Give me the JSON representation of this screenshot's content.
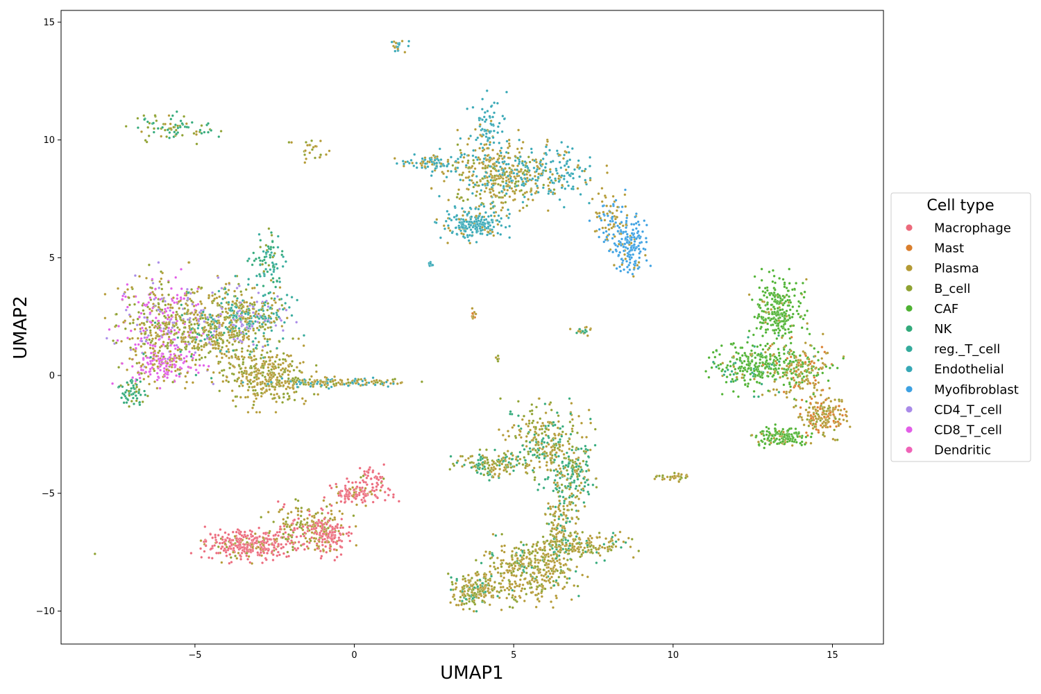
{
  "chart_data": {
    "type": "scatter",
    "xlabel": "UMAP1",
    "ylabel": "UMAP2",
    "xlim": [
      -9.2,
      16.6
    ],
    "ylim": [
      -11.4,
      15.5
    ],
    "xticks": [
      -5,
      0,
      5,
      10,
      15
    ],
    "yticks": [
      -10,
      -5,
      0,
      5,
      10,
      15
    ],
    "xtick_labels": [
      "−5",
      "0",
      "5",
      "10",
      "15"
    ],
    "ytick_labels": [
      "−10",
      "−5",
      "0",
      "5",
      "10",
      "15"
    ],
    "grid": false,
    "legend": {
      "title": "Cell type",
      "placement": "right",
      "entries": [
        {
          "name": "Macrophage",
          "color": "#ec6a7c"
        },
        {
          "name": "Mast",
          "color": "#da7e2d"
        },
        {
          "name": "Plasma",
          "color": "#b49a35"
        },
        {
          "name": "B_cell",
          "color": "#8fa232"
        },
        {
          "name": "CAF",
          "color": "#4eb232"
        },
        {
          "name": "NK",
          "color": "#33aa7b"
        },
        {
          "name": "reg._T_cell",
          "color": "#35ab9c"
        },
        {
          "name": "Endothelial",
          "color": "#37a8b6"
        },
        {
          "name": "Myofibroblast",
          "color": "#3da1e2"
        },
        {
          "name": "CD4_T_cell",
          "color": "#a98ae8"
        },
        {
          "name": "CD8_T_cell",
          "color": "#e25ee7"
        },
        {
          "name": "Dendritic",
          "color": "#ef63b7"
        }
      ]
    },
    "clusters": [
      {
        "cx": -6.0,
        "cy": 2.2,
        "sx": 0.7,
        "sy": 1.0,
        "n": 450,
        "mix": {
          "CD8_T_cell": 0.35,
          "CD4_T_cell": 0.15,
          "Plasma": 0.25,
          "B_cell": 0.25
        }
      },
      {
        "cx": -6.0,
        "cy": 0.5,
        "sx": 0.5,
        "sy": 0.4,
        "n": 150,
        "mix": {
          "CD8_T_cell": 0.7,
          "Plasma": 0.3
        }
      },
      {
        "cx": -4.6,
        "cy": 1.8,
        "sx": 0.8,
        "sy": 0.8,
        "n": 350,
        "mix": {
          "Plasma": 0.5,
          "B_cell": 0.4,
          "NK": 0.1
        }
      },
      {
        "cx": -3.4,
        "cy": 2.4,
        "sx": 0.7,
        "sy": 0.7,
        "n": 380,
        "mix": {
          "reg._T_cell": 0.3,
          "CD4_T_cell": 0.2,
          "Plasma": 0.3,
          "B_cell": 0.2
        }
      },
      {
        "cx": -2.7,
        "cy": 0.0,
        "sx": 0.6,
        "sy": 0.6,
        "n": 300,
        "mix": {
          "Plasma": 0.6,
          "B_cell": 0.4
        }
      },
      {
        "cx": -1.0,
        "cy": -0.3,
        "sx": 1.2,
        "sy": 0.1,
        "n": 180,
        "mix": {
          "Plasma": 0.5,
          "B_cell": 0.3,
          "Endothelial": 0.2
        }
      },
      {
        "cx": -2.7,
        "cy": 4.8,
        "sx": 0.25,
        "sy": 0.6,
        "n": 80,
        "mix": {
          "NK": 0.5,
          "reg._T_cell": 0.3,
          "B_cell": 0.2
        }
      },
      {
        "cx": -7.0,
        "cy": -0.7,
        "sx": 0.2,
        "sy": 0.3,
        "n": 60,
        "mix": {
          "NK": 0.8,
          "B_cell": 0.2
        }
      },
      {
        "cx": -5.6,
        "cy": 10.5,
        "sx": 0.6,
        "sy": 0.3,
        "n": 80,
        "mix": {
          "NK": 0.4,
          "B_cell": 0.4,
          "Plasma": 0.2
        }
      },
      {
        "cx": -1.4,
        "cy": 9.6,
        "sx": 0.25,
        "sy": 0.25,
        "n": 25,
        "mix": {
          "Plasma": 0.6,
          "B_cell": 0.4
        }
      },
      {
        "cx": 1.4,
        "cy": 14.0,
        "sx": 0.12,
        "sy": 0.15,
        "n": 20,
        "mix": {
          "Plasma": 0.5,
          "Endothelial": 0.5
        }
      },
      {
        "cx": 4.5,
        "cy": 8.6,
        "sx": 0.8,
        "sy": 0.7,
        "n": 420,
        "mix": {
          "Plasma": 0.55,
          "B_cell": 0.25,
          "Endothelial": 0.2
        }
      },
      {
        "cx": 3.7,
        "cy": 6.4,
        "sx": 0.45,
        "sy": 0.3,
        "n": 220,
        "mix": {
          "Endothelial": 0.85,
          "Plasma": 0.15
        }
      },
      {
        "cx": 2.4,
        "cy": 9.0,
        "sx": 0.5,
        "sy": 0.15,
        "n": 80,
        "mix": {
          "Endothelial": 0.7,
          "Plasma": 0.3
        }
      },
      {
        "cx": 6.2,
        "cy": 8.6,
        "sx": 0.7,
        "sy": 0.5,
        "n": 150,
        "mix": {
          "Endothelial": 0.75,
          "Plasma": 0.25
        }
      },
      {
        "cx": 4.2,
        "cy": 10.6,
        "sx": 0.3,
        "sy": 0.6,
        "n": 70,
        "mix": {
          "Endothelial": 0.8,
          "Plasma": 0.2
        }
      },
      {
        "cx": 8.6,
        "cy": 5.6,
        "sx": 0.3,
        "sy": 0.6,
        "n": 180,
        "mix": {
          "Myofibroblast": 0.8,
          "Plasma": 0.2
        }
      },
      {
        "cx": 8.0,
        "cy": 6.8,
        "sx": 0.25,
        "sy": 0.5,
        "n": 70,
        "mix": {
          "Plasma": 0.6,
          "Myofibroblast": 0.4
        }
      },
      {
        "cx": 13.3,
        "cy": 2.7,
        "sx": 0.35,
        "sy": 0.7,
        "n": 260,
        "mix": {
          "CAF": 0.9,
          "Plasma": 0.1
        }
      },
      {
        "cx": 12.6,
        "cy": 0.4,
        "sx": 0.7,
        "sy": 0.5,
        "n": 280,
        "mix": {
          "CAF": 0.8,
          "NK": 0.1,
          "Plasma": 0.1
        }
      },
      {
        "cx": 14.1,
        "cy": 0.2,
        "sx": 0.5,
        "sy": 0.6,
        "n": 200,
        "mix": {
          "Plasma": 0.5,
          "CAF": 0.3,
          "Mast": 0.2
        }
      },
      {
        "cx": 14.7,
        "cy": -1.7,
        "sx": 0.35,
        "sy": 0.4,
        "n": 180,
        "mix": {
          "Plasma": 0.5,
          "Mast": 0.3,
          "B_cell": 0.2
        }
      },
      {
        "cx": 13.4,
        "cy": -2.6,
        "sx": 0.4,
        "sy": 0.2,
        "n": 150,
        "mix": {
          "CAF": 0.8,
          "Plasma": 0.2
        }
      },
      {
        "cx": 6.0,
        "cy": -2.8,
        "sx": 0.6,
        "sy": 0.7,
        "n": 280,
        "mix": {
          "Plasma": 0.5,
          "B_cell": 0.25,
          "NK": 0.25
        }
      },
      {
        "cx": 4.3,
        "cy": -3.8,
        "sx": 0.5,
        "sy": 0.25,
        "n": 140,
        "mix": {
          "Plasma": 0.4,
          "B_cell": 0.3,
          "NK": 0.3
        }
      },
      {
        "cx": 6.8,
        "cy": -4.3,
        "sx": 0.4,
        "sy": 0.6,
        "n": 160,
        "mix": {
          "NK": 0.6,
          "Plasma": 0.2,
          "B_cell": 0.2
        }
      },
      {
        "cx": 6.5,
        "cy": -6.2,
        "sx": 0.25,
        "sy": 0.8,
        "n": 130,
        "mix": {
          "Plasma": 0.5,
          "NK": 0.3,
          "B_cell": 0.2
        }
      },
      {
        "cx": 7.1,
        "cy": -7.2,
        "sx": 0.7,
        "sy": 0.3,
        "n": 170,
        "mix": {
          "Plasma": 0.5,
          "B_cell": 0.3,
          "NK": 0.2
        }
      },
      {
        "cx": 5.5,
        "cy": -8.3,
        "sx": 0.7,
        "sy": 0.6,
        "n": 380,
        "mix": {
          "Plasma": 0.6,
          "B_cell": 0.3,
          "NK": 0.1
        }
      },
      {
        "cx": 3.8,
        "cy": -9.1,
        "sx": 0.45,
        "sy": 0.35,
        "n": 200,
        "mix": {
          "Plasma": 0.55,
          "B_cell": 0.3,
          "NK": 0.15
        }
      },
      {
        "cx": -3.3,
        "cy": -7.2,
        "sx": 0.7,
        "sy": 0.3,
        "n": 330,
        "mix": {
          "Macrophage": 0.85,
          "Plasma": 0.1,
          "B_cell": 0.05
        }
      },
      {
        "cx": -1.5,
        "cy": -6.3,
        "sx": 0.6,
        "sy": 0.4,
        "n": 160,
        "mix": {
          "Plasma": 0.4,
          "B_cell": 0.35,
          "Macrophage": 0.25
        }
      },
      {
        "cx": -0.8,
        "cy": -6.8,
        "sx": 0.3,
        "sy": 0.4,
        "n": 150,
        "mix": {
          "Macrophage": 0.75,
          "Plasma": 0.25
        }
      },
      {
        "cx": 0.1,
        "cy": -5.0,
        "sx": 0.5,
        "sy": 0.25,
        "n": 120,
        "mix": {
          "Macrophage": 0.85,
          "Plasma": 0.15
        }
      },
      {
        "cx": 0.6,
        "cy": -4.3,
        "sx": 0.25,
        "sy": 0.2,
        "n": 40,
        "mix": {
          "Macrophage": 0.8,
          "B_cell": 0.2
        }
      },
      {
        "cx": 10.0,
        "cy": -4.3,
        "sx": 0.25,
        "sy": 0.08,
        "n": 35,
        "mix": {
          "Plasma": 0.5,
          "B_cell": 0.5
        }
      },
      {
        "cx": 7.1,
        "cy": 1.9,
        "sx": 0.15,
        "sy": 0.08,
        "n": 20,
        "mix": {
          "Plasma": 0.6,
          "NK": 0.4
        }
      },
      {
        "cx": 3.7,
        "cy": 2.6,
        "sx": 0.06,
        "sy": 0.12,
        "n": 12,
        "mix": {
          "Plasma": 0.6,
          "Mast": 0.4
        }
      },
      {
        "cx": 2.4,
        "cy": 4.7,
        "sx": 0.05,
        "sy": 0.05,
        "n": 8,
        "mix": {
          "Endothelial": 1.0
        }
      },
      {
        "cx": 4.5,
        "cy": 0.7,
        "sx": 0.04,
        "sy": 0.08,
        "n": 6,
        "mix": {
          "Plasma": 0.5,
          "B_cell": 0.5
        }
      },
      {
        "cx": -8.1,
        "cy": -7.6,
        "sx": 0.02,
        "sy": 0.02,
        "n": 1,
        "mix": {
          "B_cell": 1.0
        }
      },
      {
        "cx": 4.9,
        "cy": -1.6,
        "sx": 0.03,
        "sy": 0.05,
        "n": 3,
        "mix": {
          "NK": 1.0
        }
      }
    ]
  }
}
